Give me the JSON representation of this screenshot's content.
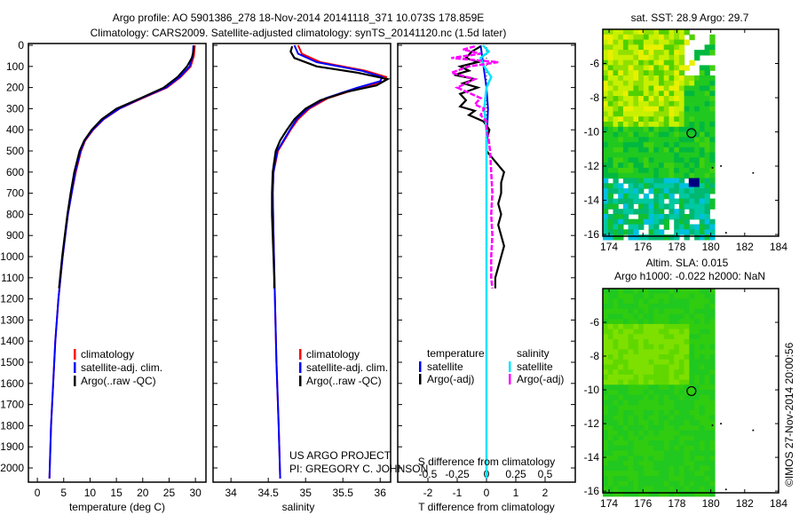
{
  "title": {
    "line1": "Argo profile: AO 5901386_278 18-Nov-2014 20141118_371 10.073S 178.859E",
    "line2": "Climatology: CARS2009. Satellite-adjusted climatology: synTS_20141120.nc (1.5d later)"
  },
  "credit": {
    "project": "US ARGO PROJECT",
    "pi": "PI: GREGORY C. JOHNSON",
    "stamp": "©IMOS 27-Nov-2014 20:00:56"
  },
  "colors": {
    "climatology": "#ff0000",
    "satellite": "#0000ff",
    "argo": "#000000",
    "sal_satellite": "#00e5ff",
    "sal_argo": "#ff00ff"
  },
  "chart_data": [
    {
      "type": "line",
      "title": "",
      "xlabel": "temperature (deg C)",
      "ylabel": "",
      "xlim": [
        -1.7,
        32
      ],
      "ylim": [
        2067,
        0
      ],
      "xticks": [
        "0",
        "5",
        "10",
        "15",
        "20",
        "25",
        "30"
      ],
      "xtick_values": [
        0,
        5,
        10,
        15,
        20,
        25,
        30
      ],
      "yticks": [
        "0",
        "100",
        "200",
        "300",
        "400",
        "500",
        "600",
        "700",
        "800",
        "900",
        "1000",
        "1100",
        "1200",
        "1300",
        "1400",
        "1500",
        "1600",
        "1700",
        "1800",
        "1900",
        "2000"
      ],
      "legend": [
        "climatology",
        "satellite-adj. clim.",
        "Argo(..raw -QC)"
      ],
      "legend_placement": "lower-center",
      "series": [
        {
          "name": "climatology",
          "depth": [
            0,
            50,
            100,
            150,
            200,
            250,
            300,
            350,
            400,
            450,
            500,
            600,
            700,
            800,
            900,
            1000,
            1100,
            1200,
            1400,
            1600,
            1800,
            2050
          ],
          "values": [
            29.9,
            29.7,
            29.1,
            27.2,
            24.6,
            20.0,
            15.6,
            12.6,
            10.6,
            9.1,
            8.3,
            7.3,
            6.5,
            5.8,
            5.3,
            4.8,
            4.4,
            4.0,
            3.4,
            3.0,
            2.6,
            2.3
          ]
        },
        {
          "name": "satellite-adj. clim.",
          "depth": [
            0,
            50,
            100,
            150,
            200,
            250,
            300,
            350,
            400,
            450,
            500,
            600,
            700,
            800,
            900,
            1000,
            1100,
            1200,
            1400,
            1600,
            1800,
            2050
          ],
          "values": [
            29.6,
            29.5,
            28.9,
            27.0,
            24.4,
            19.8,
            15.5,
            12.5,
            10.5,
            9.0,
            8.2,
            7.2,
            6.5,
            5.8,
            5.3,
            4.8,
            4.4,
            4.0,
            3.4,
            3.0,
            2.6,
            2.3
          ]
        },
        {
          "name": "Argo(..raw -QC)",
          "depth": [
            5,
            30,
            60,
            100,
            150,
            200,
            250,
            300,
            350,
            400,
            450,
            500,
            600,
            700,
            800,
            900,
            1000,
            1100,
            1150
          ],
          "values": [
            29.7,
            29.6,
            29.3,
            28.4,
            26.6,
            24.0,
            19.6,
            15.0,
            12.2,
            10.3,
            8.9,
            8.0,
            7.0,
            6.3,
            5.7,
            5.2,
            4.7,
            4.3,
            4.1
          ]
        }
      ]
    },
    {
      "type": "line",
      "xlabel": "salinity",
      "xlim": [
        33.76,
        36.14
      ],
      "ylim": [
        2067,
        0
      ],
      "xticks": [
        "34",
        "34.5",
        "35",
        "35.5",
        "36"
      ],
      "xtick_values": [
        34,
        34.5,
        35,
        35.5,
        36
      ],
      "legend": [
        "climatology",
        "satellite-adj. clim.",
        "Argo(..raw -QC)"
      ],
      "legend_placement": "lower-center",
      "series": [
        {
          "name": "climatology",
          "depth": [
            0,
            40,
            80,
            120,
            150,
            170,
            200,
            250,
            300,
            350,
            400,
            500,
            600,
            700,
            900,
            1200,
            1500,
            1800,
            2050
          ],
          "values": [
            34.9,
            34.95,
            35.2,
            35.8,
            36.08,
            36.05,
            35.75,
            35.3,
            35.05,
            34.9,
            34.8,
            34.63,
            34.57,
            34.56,
            34.57,
            34.59,
            34.61,
            34.64,
            34.66
          ]
        },
        {
          "name": "satellite-adj. clim.",
          "depth": [
            0,
            40,
            80,
            120,
            150,
            170,
            200,
            250,
            300,
            350,
            400,
            500,
            600,
            700,
            900,
            1200,
            1500,
            1800,
            2050
          ],
          "values": [
            34.85,
            34.9,
            35.15,
            35.75,
            36.03,
            36.0,
            35.7,
            35.27,
            35.03,
            34.88,
            34.79,
            34.62,
            34.57,
            34.56,
            34.57,
            34.59,
            34.61,
            34.64,
            34.66
          ]
        },
        {
          "name": "Argo(..raw -QC)",
          "depth": [
            5,
            30,
            60,
            100,
            130,
            160,
            190,
            220,
            260,
            300,
            350,
            400,
            450,
            500,
            600,
            700,
            800,
            900,
            1000,
            1100,
            1150
          ],
          "values": [
            34.82,
            34.8,
            34.85,
            35.15,
            35.7,
            36.1,
            35.95,
            35.55,
            35.2,
            35.0,
            34.85,
            34.75,
            34.66,
            34.6,
            34.56,
            34.55,
            34.55,
            34.56,
            34.57,
            34.58,
            34.58
          ]
        }
      ]
    },
    {
      "type": "line",
      "xlabel": "T difference from climatology",
      "xlabel2": "S difference from climatology",
      "xlim": [
        -3.03,
        3.03
      ],
      "ylim": [
        2067,
        0
      ],
      "xticks": [
        "-2",
        "-1",
        "0",
        "1",
        "2"
      ],
      "xtick_values": [
        -2,
        -1,
        0,
        1,
        2
      ],
      "x2ticks": [
        "-0.5",
        "-0.25",
        "0",
        "0.25",
        "0.5"
      ],
      "x2tick_values": [
        -0.5,
        -0.25,
        0,
        0.25,
        0.5
      ],
      "legend_headers": [
        "temperature",
        "salinity"
      ],
      "legend": [
        "satellite",
        "Argo(-adj)",
        "satellite",
        "Argo(-adj)"
      ],
      "series": [
        {
          "name": "temperature satellite",
          "axis": "T",
          "depth": [
            0,
            50,
            100,
            150,
            200,
            300,
            400,
            500,
            700,
            1000,
            1500,
            2050
          ],
          "values": [
            -0.2,
            -0.15,
            -0.1,
            -0.05,
            0,
            0.05,
            0.02,
            0,
            0,
            0,
            0,
            0
          ]
        },
        {
          "name": "temperature Argo(-adj)",
          "axis": "T",
          "depth": [
            5,
            30,
            60,
            80,
            100,
            120,
            140,
            160,
            180,
            200,
            230,
            260,
            290,
            310,
            330,
            360,
            400,
            450,
            500,
            550,
            600,
            650,
            700,
            750,
            800,
            850,
            900,
            950,
            1000,
            1050,
            1100,
            1150
          ],
          "values": [
            -0.2,
            -0.5,
            -0.7,
            -0.3,
            -0.9,
            -0.6,
            -1.1,
            -0.4,
            -0.8,
            -0.3,
            -0.9,
            -0.7,
            -0.9,
            -0.4,
            -0.6,
            -0.1,
            0.1,
            0.0,
            0.0,
            0.3,
            0.6,
            0.5,
            0.5,
            0.4,
            0.5,
            0.4,
            0.5,
            0.6,
            0.5,
            0.4,
            0.3,
            0.3
          ]
        },
        {
          "name": "salinity satellite",
          "axis": "S",
          "depth": [
            0,
            30,
            60,
            100,
            150,
            200,
            300,
            400,
            500,
            700,
            1000,
            1500,
            2050
          ],
          "values": [
            -0.03,
            0.02,
            -0.05,
            -0.02,
            0.04,
            0.0,
            -0.02,
            0.0,
            0.0,
            0.0,
            0.0,
            0.0,
            0.0
          ]
        },
        {
          "name": "salinity Argo(-adj)",
          "axis": "S",
          "depth": [
            5,
            20,
            40,
            60,
            80,
            100,
            130,
            160,
            200,
            250,
            280,
            300,
            330,
            360,
            400,
            450,
            500,
            600,
            700,
            800,
            900,
            1000,
            1100,
            1150
          ],
          "values": [
            -0.1,
            -0.2,
            -0.05,
            -0.3,
            0.1,
            -0.15,
            -0.3,
            -0.1,
            -0.25,
            -0.05,
            -0.1,
            -0.02,
            -0.05,
            0.0,
            0.0,
            0.02,
            0.03,
            0.04,
            0.05,
            0.04,
            0.05,
            0.04,
            0.04,
            0.05
          ]
        }
      ]
    },
    {
      "type": "heatmap",
      "title": "sat. SST: 28.9 Argo: 29.7",
      "xlim": [
        173.63,
        184
      ],
      "ylim": [
        -16.1,
        -4
      ],
      "xticks": [
        "174",
        "176",
        "178",
        "180",
        "182",
        "184"
      ],
      "xtick_values": [
        174,
        176,
        178,
        180,
        182,
        184
      ],
      "yticks": [
        "-6",
        "-8",
        "-10",
        "-12",
        "-14",
        "-16"
      ],
      "ytick_values": [
        -6,
        -8,
        -10,
        -12,
        -14,
        -16
      ],
      "marker": {
        "lon": 178.859,
        "lat": -10.073
      }
    },
    {
      "type": "heatmap",
      "title": "Altim. SLA: 0.015",
      "subtitle": "Argo h1000: -0.022 h2000: NaN",
      "xlim": [
        173.63,
        184
      ],
      "ylim": [
        -16.1,
        -4
      ],
      "xticks": [
        "174",
        "176",
        "178",
        "180",
        "182",
        "184"
      ],
      "xtick_values": [
        174,
        176,
        178,
        180,
        182,
        184
      ],
      "yticks": [
        "-6",
        "-8",
        "-10",
        "-12",
        "-14",
        "-16"
      ],
      "ytick_values": [
        -6,
        -8,
        -10,
        -12,
        -14,
        -16
      ],
      "marker": {
        "lon": 178.859,
        "lat": -10.073
      }
    }
  ]
}
